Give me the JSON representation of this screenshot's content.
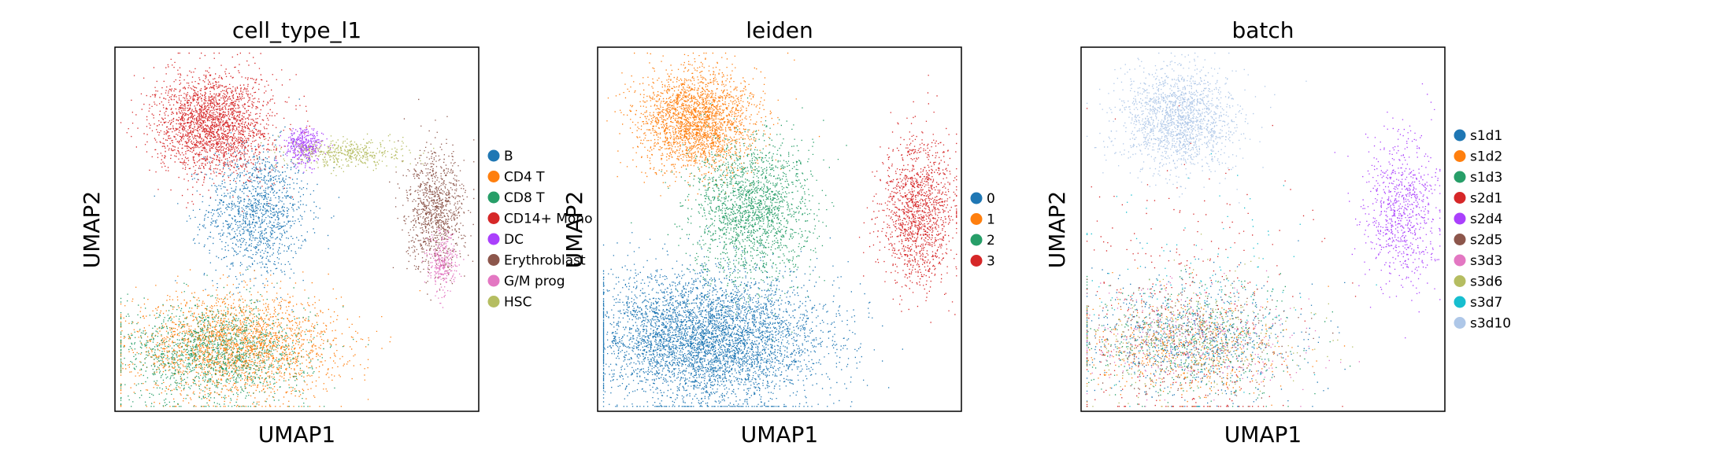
{
  "figure": {
    "panels": [
      {
        "title": "cell_type_l1",
        "xlabel": "UMAP1",
        "ylabel": "UMAP2",
        "legend": [
          {
            "label": "B",
            "color": "#1f77b4"
          },
          {
            "label": "CD4 T",
            "color": "#ff7f0e"
          },
          {
            "label": "CD8 T",
            "color": "#279e68"
          },
          {
            "label": "CD14+ Mono",
            "color": "#d62728"
          },
          {
            "label": "DC",
            "color": "#aa40fc"
          },
          {
            "label": "Erythroblast",
            "color": "#8c564b"
          },
          {
            "label": "G/M prog",
            "color": "#e377c2"
          },
          {
            "label": "HSC",
            "color": "#b5bd61"
          }
        ]
      },
      {
        "title": "leiden",
        "xlabel": "UMAP1",
        "ylabel": "UMAP2",
        "legend": [
          {
            "label": "0",
            "color": "#1f77b4"
          },
          {
            "label": "1",
            "color": "#ff7f0e"
          },
          {
            "label": "2",
            "color": "#279e68"
          },
          {
            "label": "3",
            "color": "#d62728"
          }
        ]
      },
      {
        "title": "batch",
        "xlabel": "UMAP1",
        "ylabel": "UMAP2",
        "legend": [
          {
            "label": "s1d1",
            "color": "#1f77b4"
          },
          {
            "label": "s1d2",
            "color": "#ff7f0e"
          },
          {
            "label": "s1d3",
            "color": "#279e68"
          },
          {
            "label": "s2d1",
            "color": "#d62728"
          },
          {
            "label": "s2d4",
            "color": "#aa40fc"
          },
          {
            "label": "s2d5",
            "color": "#8c564b"
          },
          {
            "label": "s3d3",
            "color": "#e377c2"
          },
          {
            "label": "s3d6",
            "color": "#b5bd61"
          },
          {
            "label": "s3d7",
            "color": "#17becf"
          },
          {
            "label": "s3d10",
            "color": "#aec7e8"
          }
        ]
      }
    ]
  },
  "chart_data": [
    {
      "type": "scatter",
      "title": "cell_type_l1",
      "xlabel": "UMAP1",
      "ylabel": "UMAP2",
      "ticks": "none",
      "series": [
        {
          "name": "B",
          "color": "#1f77b4",
          "clusters": [
            {
              "center": [
                0.39,
                0.55
              ],
              "spread": [
                0.07,
                0.09
              ],
              "density": 1300
            }
          ]
        },
        {
          "name": "CD4 T",
          "color": "#ff7f0e",
          "clusters": [
            {
              "center": [
                0.33,
                0.18
              ],
              "spread": [
                0.14,
                0.07
              ],
              "density": 2400
            }
          ]
        },
        {
          "name": "CD8 T",
          "color": "#279e68",
          "clusters": [
            {
              "center": [
                0.27,
                0.16
              ],
              "spread": [
                0.13,
                0.07
              ],
              "density": 1500
            }
          ]
        },
        {
          "name": "CD14+ Mono",
          "color": "#d62728",
          "clusters": [
            {
              "center": [
                0.27,
                0.79
              ],
              "spread": [
                0.08,
                0.07
              ],
              "density": 2300
            }
          ]
        },
        {
          "name": "DC",
          "color": "#aa40fc",
          "clusters": [
            {
              "center": [
                0.52,
                0.73
              ],
              "spread": [
                0.025,
                0.025
              ],
              "density": 400
            }
          ]
        },
        {
          "name": "Erythroblast",
          "color": "#8c564b",
          "clusters": [
            {
              "center": [
                0.88,
                0.55
              ],
              "spread": [
                0.04,
                0.08
              ],
              "density": 1000
            }
          ]
        },
        {
          "name": "G/M prog",
          "color": "#e377c2",
          "clusters": [
            {
              "center": [
                0.9,
                0.41
              ],
              "spread": [
                0.02,
                0.04
              ],
              "density": 300
            }
          ]
        },
        {
          "name": "HSC",
          "color": "#b5bd61",
          "clusters": [
            {
              "center": [
                0.64,
                0.71
              ],
              "spread": [
                0.08,
                0.02
              ],
              "density": 450
            }
          ]
        }
      ]
    },
    {
      "type": "scatter",
      "title": "leiden",
      "xlabel": "UMAP1",
      "ylabel": "UMAP2",
      "ticks": "none",
      "series": [
        {
          "name": "0",
          "color": "#1f77b4",
          "clusters": [
            {
              "center": [
                0.3,
                0.2
              ],
              "spread": [
                0.16,
                0.09
              ],
              "density": 5000
            }
          ]
        },
        {
          "name": "1",
          "color": "#ff7f0e",
          "clusters": [
            {
              "center": [
                0.27,
                0.8
              ],
              "spread": [
                0.08,
                0.07
              ],
              "density": 2400
            }
          ]
        },
        {
          "name": "2",
          "color": "#279e68",
          "clusters": [
            {
              "center": [
                0.42,
                0.55
              ],
              "spread": [
                0.08,
                0.1
              ],
              "density": 1900
            }
          ]
        },
        {
          "name": "3",
          "color": "#d62728",
          "clusters": [
            {
              "center": [
                0.88,
                0.55
              ],
              "spread": [
                0.05,
                0.1
              ],
              "density": 1400
            }
          ]
        }
      ]
    },
    {
      "type": "scatter",
      "title": "batch",
      "xlabel": "UMAP1",
      "ylabel": "UMAP2",
      "ticks": "none",
      "series": [
        {
          "name": "s1d1",
          "color": "#1f77b4",
          "clusters": [
            {
              "center": [
                0.3,
                0.2
              ],
              "spread": [
                0.15,
                0.08
              ],
              "density": 700
            }
          ]
        },
        {
          "name": "s1d2",
          "color": "#ff7f0e",
          "clusters": [
            {
              "center": [
                0.28,
                0.17
              ],
              "spread": [
                0.14,
                0.07
              ],
              "density": 500
            }
          ]
        },
        {
          "name": "s1d3",
          "color": "#279e68",
          "clusters": [
            {
              "center": [
                0.3,
                0.2
              ],
              "spread": [
                0.15,
                0.08
              ],
              "density": 500
            }
          ]
        },
        {
          "name": "s2d1",
          "color": "#d62728",
          "clusters": [
            {
              "center": [
                0.28,
                0.25
              ],
              "spread": [
                0.16,
                0.2
              ],
              "density": 350
            }
          ]
        },
        {
          "name": "s2d4",
          "color": "#aa40fc",
          "clusters": [
            {
              "center": [
                0.88,
                0.55
              ],
              "spread": [
                0.05,
                0.1
              ],
              "density": 800
            }
          ]
        },
        {
          "name": "s2d5",
          "color": "#8c564b",
          "clusters": [
            {
              "center": [
                0.3,
                0.2
              ],
              "spread": [
                0.15,
                0.08
              ],
              "density": 300
            }
          ]
        },
        {
          "name": "s3d3",
          "color": "#e377c2",
          "clusters": [
            {
              "center": [
                0.3,
                0.2
              ],
              "spread": [
                0.15,
                0.08
              ],
              "density": 300
            }
          ]
        },
        {
          "name": "s3d6",
          "color": "#b5bd61",
          "clusters": [
            {
              "center": [
                0.3,
                0.2
              ],
              "spread": [
                0.15,
                0.08
              ],
              "density": 300
            }
          ]
        },
        {
          "name": "s3d7",
          "color": "#17becf",
          "clusters": [
            {
              "center": [
                0.3,
                0.3
              ],
              "spread": [
                0.15,
                0.15
              ],
              "density": 150
            }
          ]
        },
        {
          "name": "s3d10",
          "color": "#aec7e8",
          "clusters": [
            {
              "center": [
                0.27,
                0.8
              ],
              "spread": [
                0.08,
                0.07
              ],
              "density": 1700
            }
          ]
        }
      ]
    }
  ]
}
